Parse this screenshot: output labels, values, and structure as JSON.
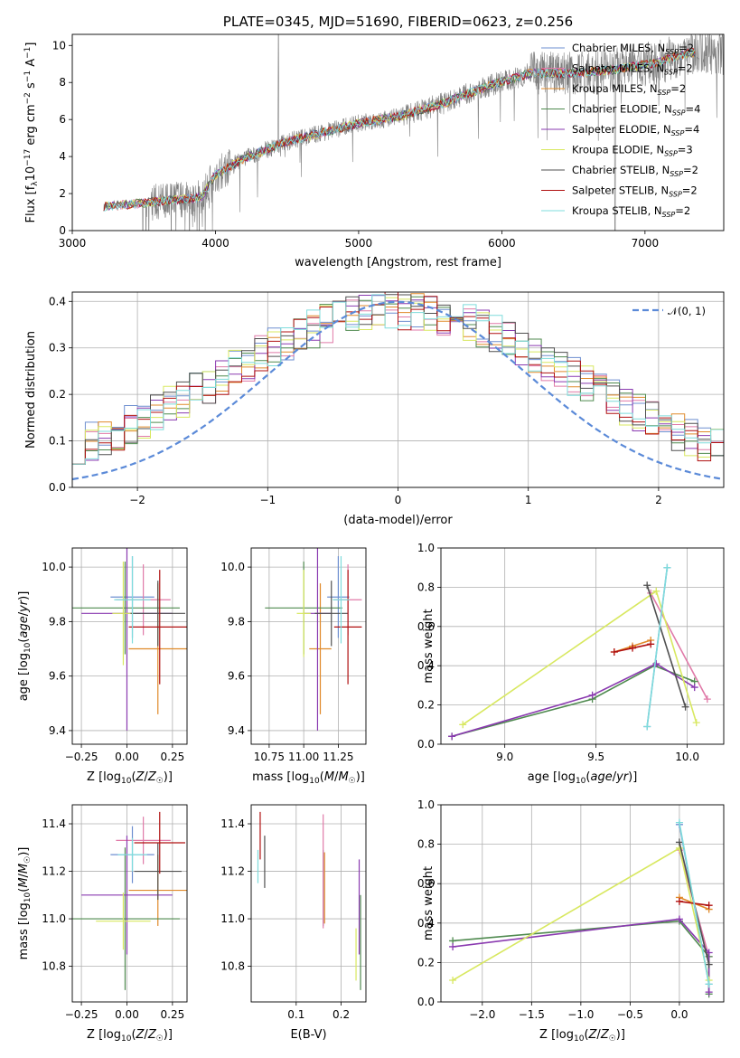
{
  "colors": {
    "chabrier_miles": "#6e8fd0",
    "salpeter_miles": "#e07aa8",
    "kroupa_miles": "#e08a2a",
    "chabrier_elodie": "#4f8a4f",
    "salpeter_elodie": "#8a3ab0",
    "kroupa_elodie": "#d8e860",
    "chabrier_stelib": "#505050",
    "salpeter_stelib": "#b01010",
    "kroupa_stelib": "#7fdcdc",
    "data": "#808080",
    "normal": "#5b8ad8"
  },
  "chart_data": [
    {
      "id": "spectrum",
      "type": "line",
      "title": "PLATE=0345, MJD=51690, FIBERID=0623, z=0.256",
      "xlabel": "wavelength [Angstrom, rest frame]",
      "ylabel": "Flux [f_λ 10⁻¹⁷ erg cm⁻² s⁻¹ A⁻¹]",
      "xlim": [
        3000,
        7550
      ],
      "ylim": [
        0,
        10.6
      ],
      "xticks": [
        "3000",
        "4000",
        "5000",
        "6000",
        "7000"
      ],
      "yticks": [
        "0",
        "2",
        "4",
        "6",
        "8",
        "10"
      ],
      "legend_position": "top-right",
      "legend": [
        {
          "label": "Chabrier MILES, N_SSP=2",
          "text": "Chabrier MILES, N",
          "sub": "SSP",
          "tail": "=2",
          "color": "chabrier_miles"
        },
        {
          "label": "Salpeter MILES, N_SSP=2",
          "text": "Salpeter MILES, N",
          "sub": "SSP",
          "tail": "=2",
          "color": "salpeter_miles"
        },
        {
          "label": "Kroupa MILES, N_SSP=2",
          "text": "Kroupa MILES, N",
          "sub": "SSP",
          "tail": "=2",
          "color": "kroupa_miles"
        },
        {
          "label": "Chabrier ELODIE, N_SSP=4",
          "text": "Chabrier ELODIE, N",
          "sub": "SSP",
          "tail": "=4",
          "color": "chabrier_elodie"
        },
        {
          "label": "Salpeter ELODIE, N_SSP=4",
          "text": "Salpeter ELODIE, N",
          "sub": "SSP",
          "tail": "=4",
          "color": "salpeter_elodie"
        },
        {
          "label": "Kroupa ELODIE, N_SSP=3",
          "text": "Kroupa ELODIE, N",
          "sub": "SSP",
          "tail": "=3",
          "color": "kroupa_elodie"
        },
        {
          "label": "Chabrier STELIB, N_SSP=2",
          "text": "Chabrier STELIB, N",
          "sub": "SSP",
          "tail": "=2",
          "color": "chabrier_stelib"
        },
        {
          "label": "Salpeter STELIB, N_SSP=2",
          "text": "Salpeter STELIB, N",
          "sub": "SSP",
          "tail": "=2",
          "color": "salpeter_stelib"
        },
        {
          "label": "Kroupa STELIB, N_SSP=2",
          "text": "Kroupa STELIB, N",
          "sub": "SSP",
          "tail": "=2",
          "color": "kroupa_stelib"
        }
      ],
      "continuum": {
        "x": [
          3220,
          3500,
          3900,
          4000,
          4200,
          4500,
          4800,
          5000,
          5300,
          5600,
          5900,
          6200,
          6500,
          6800,
          7100,
          7300
        ],
        "y": [
          1.3,
          1.5,
          1.8,
          3.0,
          3.9,
          4.8,
          5.4,
          5.8,
          6.2,
          6.9,
          7.8,
          8.5,
          8.5,
          8.7,
          9.1,
          9.6
        ]
      }
    },
    {
      "id": "residuals",
      "type": "line",
      "xlabel": "(data-model)/error",
      "ylabel": "Normed distribution",
      "xlim": [
        -2.5,
        2.5
      ],
      "ylim": [
        0,
        0.42
      ],
      "xticks": [
        "−2",
        "−1",
        "0",
        "1",
        "2"
      ],
      "yticks": [
        "0.0",
        "0.1",
        "0.2",
        "0.3",
        "0.4"
      ],
      "legend_position": "top-right",
      "legend_label": "𝒩(0, 1)",
      "grid": true
    },
    {
      "id": "age-vs-z",
      "type": "scatter",
      "xlabel": "Z [log₁₀(Z/Z☉)]",
      "ylabel": "age  [log₁₀(age/yr)]",
      "xlim": [
        -0.3,
        0.33
      ],
      "ylim": [
        9.35,
        10.07
      ],
      "xticks": [
        "−0.25",
        "0.00",
        "0.25"
      ],
      "yticks": [
        "9.4",
        "9.6",
        "9.8",
        "10.0"
      ],
      "grid": true,
      "points": [
        {
          "s": "chabrier_miles",
          "x": 0.03,
          "y": 9.89,
          "xe": 0.12,
          "ye": 0.15
        },
        {
          "s": "salpeter_miles",
          "x": 0.09,
          "y": 9.88,
          "xe": 0.15,
          "ye": 0.13
        },
        {
          "s": "kroupa_miles",
          "x": 0.17,
          "y": 9.7,
          "xe": 0.16,
          "ye": 0.24
        },
        {
          "s": "chabrier_elodie",
          "x": -0.01,
          "y": 9.85,
          "xe": 0.3,
          "ye": 0.17
        },
        {
          "s": "salpeter_elodie",
          "x": 0.0,
          "y": 9.83,
          "xe": 0.25,
          "ye": 0.43
        },
        {
          "s": "kroupa_elodie",
          "x": -0.02,
          "y": 9.83,
          "xe": 0.06,
          "ye": 0.19
        },
        {
          "s": "chabrier_stelib",
          "x": 0.17,
          "y": 9.83,
          "xe": 0.15,
          "ye": 0.12
        },
        {
          "s": "salpeter_stelib",
          "x": 0.18,
          "y": 9.78,
          "xe": 0.17,
          "ye": 0.21
        },
        {
          "s": "kroupa_stelib",
          "x": 0.03,
          "y": 9.88,
          "xe": 0.1,
          "ye": 0.16
        }
      ]
    },
    {
      "id": "age-vs-mass",
      "type": "scatter",
      "xlabel": "mass [log₁₀(M/M☉)]",
      "ylabel": "",
      "xlim": [
        10.62,
        11.45
      ],
      "ylim": [
        9.35,
        10.07
      ],
      "xticks": [
        "10.75",
        "11.00",
        "11.25"
      ],
      "yticks": [
        "9.4",
        "9.6",
        "9.8",
        "10.0"
      ],
      "grid": true,
      "points": [
        {
          "s": "chabrier_miles",
          "x": 11.25,
          "y": 9.89,
          "xe": 0.08,
          "ye": 0.15
        },
        {
          "s": "salpeter_miles",
          "x": 11.32,
          "y": 9.88,
          "xe": 0.1,
          "ye": 0.13
        },
        {
          "s": "kroupa_miles",
          "x": 11.12,
          "y": 9.7,
          "xe": 0.08,
          "ye": 0.24
        },
        {
          "s": "chabrier_elodie",
          "x": 11.0,
          "y": 9.85,
          "xe": 0.28,
          "ye": 0.17
        },
        {
          "s": "salpeter_elodie",
          "x": 11.1,
          "y": 9.83,
          "xe": 0.1,
          "ye": 0.43
        },
        {
          "s": "kroupa_elodie",
          "x": 11.0,
          "y": 9.83,
          "xe": 0.05,
          "ye": 0.16
        },
        {
          "s": "chabrier_stelib",
          "x": 11.2,
          "y": 9.83,
          "xe": 0.12,
          "ye": 0.12
        },
        {
          "s": "salpeter_stelib",
          "x": 11.32,
          "y": 9.78,
          "xe": 0.1,
          "ye": 0.21
        },
        {
          "s": "kroupa_stelib",
          "x": 11.27,
          "y": 9.88,
          "xe": 0.06,
          "ye": 0.16
        }
      ]
    },
    {
      "id": "weight-vs-age",
      "type": "line",
      "xlabel": "age  [log₁₀(age/yr)]",
      "ylabel": "mass weight",
      "xlim": [
        8.65,
        10.2
      ],
      "ylim": [
        0,
        1
      ],
      "xticks": [
        "9.0",
        "9.5",
        "10.0"
      ],
      "yticks": [
        "0.0",
        "0.2",
        "0.4",
        "0.6",
        "0.8",
        "1.0"
      ],
      "grid": true,
      "series": [
        {
          "s": "chabrier_miles",
          "x": [
            9.78,
            9.89
          ],
          "y": [
            0.09,
            0.9
          ]
        },
        {
          "s": "salpeter_miles",
          "x": [
            9.8,
            10.11
          ],
          "y": [
            0.77,
            0.23
          ]
        },
        {
          "s": "kroupa_miles",
          "x": [
            9.6,
            9.7,
            9.8
          ],
          "y": [
            0.47,
            0.5,
            0.53
          ]
        },
        {
          "s": "chabrier_elodie",
          "x": [
            8.71,
            9.48,
            9.82,
            10.04
          ],
          "y": [
            0.04,
            0.23,
            0.4,
            0.32
          ]
        },
        {
          "s": "salpeter_elodie",
          "x": [
            8.71,
            9.48,
            9.83,
            10.04
          ],
          "y": [
            0.04,
            0.25,
            0.41,
            0.29
          ]
        },
        {
          "s": "kroupa_elodie",
          "x": [
            8.77,
            9.83,
            10.05
          ],
          "y": [
            0.1,
            0.78,
            0.11
          ]
        },
        {
          "s": "chabrier_stelib",
          "x": [
            9.78,
            9.99
          ],
          "y": [
            0.81,
            0.19
          ]
        },
        {
          "s": "salpeter_stelib",
          "x": [
            9.6,
            9.7,
            9.8
          ],
          "y": [
            0.47,
            0.49,
            0.51
          ]
        },
        {
          "s": "kroupa_stelib",
          "x": [
            9.78,
            9.89
          ],
          "y": [
            0.09,
            0.9
          ]
        }
      ]
    },
    {
      "id": "mass-vs-z",
      "type": "scatter",
      "xlabel": "Z [log₁₀(Z/Z☉)]",
      "ylabel": "mass [log₁₀(M/M☉)]",
      "xlim": [
        -0.3,
        0.33
      ],
      "ylim": [
        10.65,
        11.48
      ],
      "xticks": [
        "−0.25",
        "0.00",
        "0.25"
      ],
      "yticks": [
        "10.8",
        "11.0",
        "11.2",
        "11.4"
      ],
      "grid": true,
      "points": [
        {
          "s": "chabrier_miles",
          "x": 0.03,
          "y": 11.27,
          "xe": 0.12,
          "ye": 0.12
        },
        {
          "s": "salpeter_miles",
          "x": 0.09,
          "y": 11.33,
          "xe": 0.15,
          "ye": 0.1
        },
        {
          "s": "kroupa_miles",
          "x": 0.17,
          "y": 11.12,
          "xe": 0.16,
          "ye": 0.15
        },
        {
          "s": "chabrier_elodie",
          "x": -0.01,
          "y": 11.0,
          "xe": 0.3,
          "ye": 0.3
        },
        {
          "s": "salpeter_elodie",
          "x": 0.0,
          "y": 11.1,
          "xe": 0.25,
          "ye": 0.25
        },
        {
          "s": "kroupa_elodie",
          "x": -0.02,
          "y": 10.99,
          "xe": 0.15,
          "ye": 0.12
        },
        {
          "s": "chabrier_stelib",
          "x": 0.17,
          "y": 11.2,
          "xe": 0.13,
          "ye": 0.12
        },
        {
          "s": "salpeter_stelib",
          "x": 0.18,
          "y": 11.32,
          "xe": 0.14,
          "ye": 0.13
        },
        {
          "s": "kroupa_stelib",
          "x": 0.03,
          "y": 11.27,
          "xe": 0.08,
          "ye": 0.07
        }
      ]
    },
    {
      "id": "mass-vs-ebv",
      "type": "scatter",
      "xlabel": "E(B-V)",
      "ylabel": "",
      "xlim": [
        0.0,
        0.255
      ],
      "ylim": [
        10.65,
        11.48
      ],
      "xticks": [
        "0.1",
        "0.2"
      ],
      "yticks": [
        "10.8",
        "11.0",
        "11.2",
        "11.4"
      ],
      "grid": true,
      "points": [
        {
          "s": "chabrier_miles",
          "x": 0.16,
          "y": 11.13,
          "xe": 0,
          "ye": 0.16
        },
        {
          "s": "salpeter_miles",
          "x": 0.16,
          "y": 11.2,
          "xe": 0,
          "ye": 0.24
        },
        {
          "s": "kroupa_miles",
          "x": 0.163,
          "y": 11.13,
          "xe": 0,
          "ye": 0.15
        },
        {
          "s": "chabrier_elodie",
          "x": 0.243,
          "y": 10.9,
          "xe": 0,
          "ye": 0.2
        },
        {
          "s": "salpeter_elodie",
          "x": 0.24,
          "y": 11.05,
          "xe": 0,
          "ye": 0.2
        },
        {
          "s": "kroupa_elodie",
          "x": 0.233,
          "y": 10.85,
          "xe": 0,
          "ye": 0.11
        },
        {
          "s": "chabrier_stelib",
          "x": 0.03,
          "y": 11.24,
          "xe": 0,
          "ye": 0.11
        },
        {
          "s": "salpeter_stelib",
          "x": 0.02,
          "y": 11.35,
          "xe": 0,
          "ye": 0.1
        },
        {
          "s": "kroupa_stelib",
          "x": 0.015,
          "y": 11.22,
          "xe": 0,
          "ye": 0.07
        }
      ]
    },
    {
      "id": "weight-vs-z",
      "type": "line",
      "xlabel": "Z [log₁₀(Z/Z☉)]",
      "ylabel": "mass weight",
      "xlim": [
        -2.42,
        0.45
      ],
      "ylim": [
        0,
        1
      ],
      "xticks": [
        "−2.0",
        "−1.5",
        "−1.0",
        "−0.5",
        "0.0"
      ],
      "yticks": [
        "0.0",
        "0.2",
        "0.4",
        "0.6",
        "0.8",
        "1.0"
      ],
      "grid": true,
      "series": [
        {
          "s": "chabrier_miles",
          "x": [
            0.0,
            0.3
          ],
          "y": [
            0.9,
            0.09
          ]
        },
        {
          "s": "salpeter_miles",
          "x": [
            0.0,
            0.3
          ],
          "y": [
            0.77,
            0.23
          ]
        },
        {
          "s": "kroupa_miles",
          "x": [
            0.0,
            0.3
          ],
          "y": [
            0.53,
            0.47
          ]
        },
        {
          "s": "chabrier_elodie",
          "x": [
            -2.3,
            0.0,
            0.3,
            0.3
          ],
          "y": [
            0.31,
            0.41,
            0.23,
            0.04
          ]
        },
        {
          "s": "salpeter_elodie",
          "x": [
            -2.3,
            0.0,
            0.3,
            0.3
          ],
          "y": [
            0.28,
            0.42,
            0.25,
            0.05
          ]
        },
        {
          "s": "kroupa_elodie",
          "x": [
            -2.3,
            0.0,
            0.3
          ],
          "y": [
            0.11,
            0.78,
            0.11
          ]
        },
        {
          "s": "chabrier_stelib",
          "x": [
            0.0,
            0.3
          ],
          "y": [
            0.81,
            0.19
          ]
        },
        {
          "s": "salpeter_stelib",
          "x": [
            0.0,
            0.3
          ],
          "y": [
            0.51,
            0.49
          ]
        },
        {
          "s": "kroupa_stelib",
          "x": [
            0.0,
            0.3
          ],
          "y": [
            0.91,
            0.09
          ]
        }
      ]
    }
  ]
}
